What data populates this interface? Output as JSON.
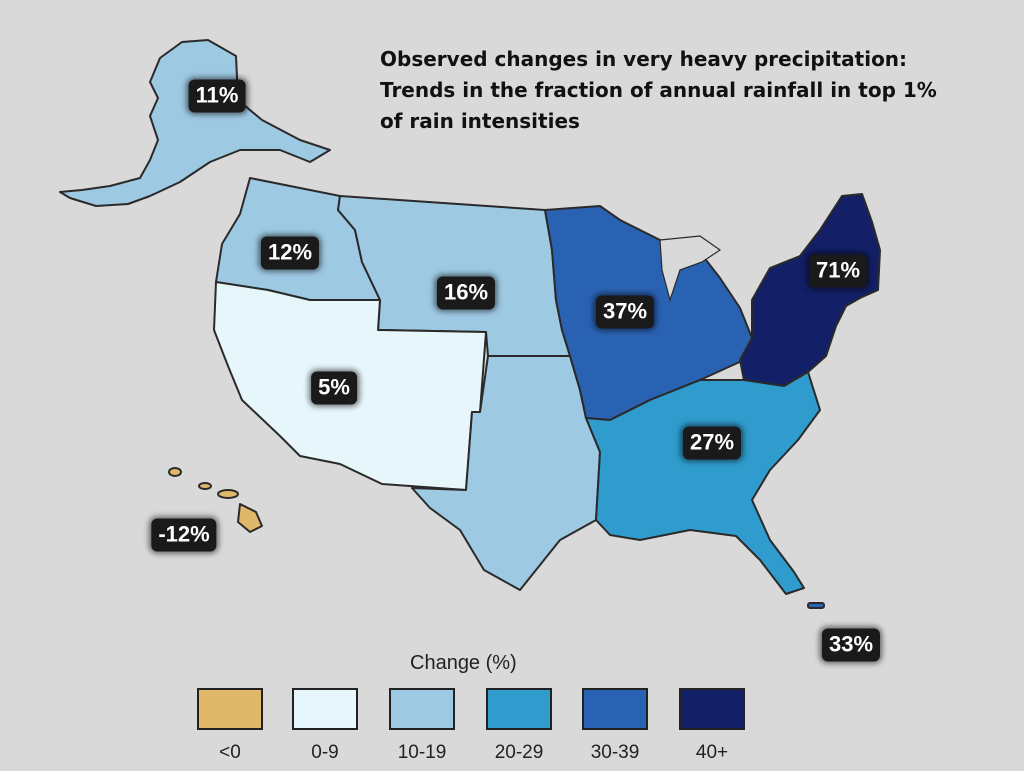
{
  "title": {
    "line1": "Observed changes in very heavy precipitation:",
    "line2": "Trends in the fraction of annual rainfall in top 1%",
    "line3": "of rain intensities"
  },
  "colors": {
    "neg": "#e0b86a",
    "c0_9": "#e6f6fb",
    "c10_19": "#9ec9e3",
    "c20_29": "#2f9ccd",
    "c30_39": "#2a62b3",
    "c40": "#131f66",
    "border": "#2a2a2a"
  },
  "regions": [
    {
      "name": "Alaska",
      "value": "11%",
      "fill": "c10_19"
    },
    {
      "name": "Northwest",
      "value": "12%",
      "fill": "c10_19"
    },
    {
      "name": "Great Plains",
      "value": "16%",
      "fill": "c10_19"
    },
    {
      "name": "Southwest",
      "value": "5%",
      "fill": "c0_9"
    },
    {
      "name": "Midwest",
      "value": "37%",
      "fill": "c30_39"
    },
    {
      "name": "Northeast",
      "value": "71%",
      "fill": "c40"
    },
    {
      "name": "Southeast",
      "value": "27%",
      "fill": "c20_29"
    },
    {
      "name": "Hawaii",
      "value": "-12%",
      "fill": "neg"
    },
    {
      "name": "Puerto Rico",
      "value": "33%",
      "fill": "c30_39"
    }
  ],
  "legend": {
    "title": "Change (%)",
    "items": [
      {
        "label": "<0",
        "color": "#e0b86a"
      },
      {
        "label": "0-9",
        "color": "#e6f6fb"
      },
      {
        "label": "10-19",
        "color": "#9ec9e3"
      },
      {
        "label": "20-29",
        "color": "#2f9ccd"
      },
      {
        "label": "30-39",
        "color": "#2a62b3"
      },
      {
        "label": "40+",
        "color": "#131f66"
      }
    ]
  }
}
